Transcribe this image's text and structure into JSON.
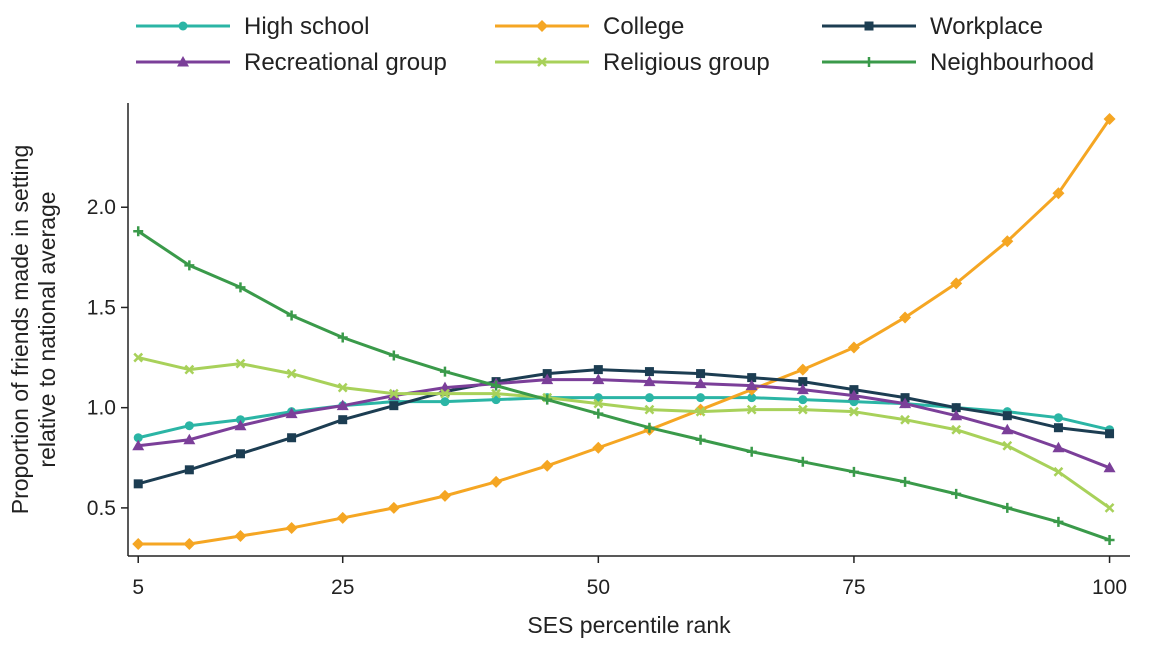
{
  "chart_data": {
    "type": "line",
    "title": "",
    "xlabel": "SES percentile rank",
    "ylabel_lines": [
      "Proportion of friends made in setting",
      "relative to national average"
    ],
    "xlim": [
      4,
      102
    ],
    "ylim": [
      0.26,
      2.52
    ],
    "xticks": [
      5,
      25,
      50,
      75,
      100
    ],
    "xtick_labels": [
      "5",
      "25",
      "50",
      "75",
      "100"
    ],
    "yticks": [
      0.5,
      1.0,
      1.5,
      2.0
    ],
    "ytick_labels": [
      "0.5",
      "1.0",
      "1.5",
      "2.0"
    ],
    "grid": false,
    "legend_position": "top",
    "x": [
      5,
      10,
      15,
      20,
      25,
      30,
      35,
      40,
      45,
      50,
      55,
      60,
      65,
      70,
      75,
      80,
      85,
      90,
      95,
      100
    ],
    "series": [
      {
        "name": "High school",
        "color": "#2bb5a5",
        "marker": "circle",
        "values": [
          0.85,
          0.91,
          0.94,
          0.98,
          1.01,
          1.03,
          1.03,
          1.04,
          1.05,
          1.05,
          1.05,
          1.05,
          1.05,
          1.04,
          1.03,
          1.02,
          1.0,
          0.98,
          0.95,
          0.89
        ]
      },
      {
        "name": "College",
        "color": "#f5a623",
        "marker": "diamond",
        "values": [
          0.32,
          0.32,
          0.36,
          0.4,
          0.45,
          0.5,
          0.56,
          0.63,
          0.71,
          0.8,
          0.89,
          0.99,
          1.09,
          1.19,
          1.3,
          1.45,
          1.62,
          1.83,
          2.07,
          2.44
        ]
      },
      {
        "name": "Workplace",
        "color": "#1c3d52",
        "marker": "square",
        "values": [
          0.62,
          0.69,
          0.77,
          0.85,
          0.94,
          1.01,
          1.08,
          1.13,
          1.17,
          1.19,
          1.18,
          1.17,
          1.15,
          1.13,
          1.09,
          1.05,
          1.0,
          0.96,
          0.9,
          0.87
        ]
      },
      {
        "name": "Recreational group",
        "color": "#7b3f99",
        "marker": "triangle",
        "values": [
          0.81,
          0.84,
          0.91,
          0.97,
          1.01,
          1.06,
          1.1,
          1.12,
          1.14,
          1.14,
          1.13,
          1.12,
          1.11,
          1.09,
          1.06,
          1.02,
          0.96,
          0.89,
          0.8,
          0.7
        ]
      },
      {
        "name": "Religious group",
        "color": "#a8d15a",
        "marker": "x",
        "values": [
          1.25,
          1.19,
          1.22,
          1.17,
          1.1,
          1.07,
          1.07,
          1.07,
          1.05,
          1.02,
          0.99,
          0.98,
          0.99,
          0.99,
          0.98,
          0.94,
          0.89,
          0.81,
          0.68,
          0.5
        ]
      },
      {
        "name": "Neighbourhood",
        "color": "#3a9a4a",
        "marker": "plus",
        "values": [
          1.88,
          1.71,
          1.6,
          1.46,
          1.35,
          1.26,
          1.18,
          1.11,
          1.04,
          0.97,
          0.9,
          0.84,
          0.78,
          0.73,
          0.68,
          0.63,
          0.57,
          0.5,
          0.43,
          0.34
        ]
      }
    ]
  }
}
